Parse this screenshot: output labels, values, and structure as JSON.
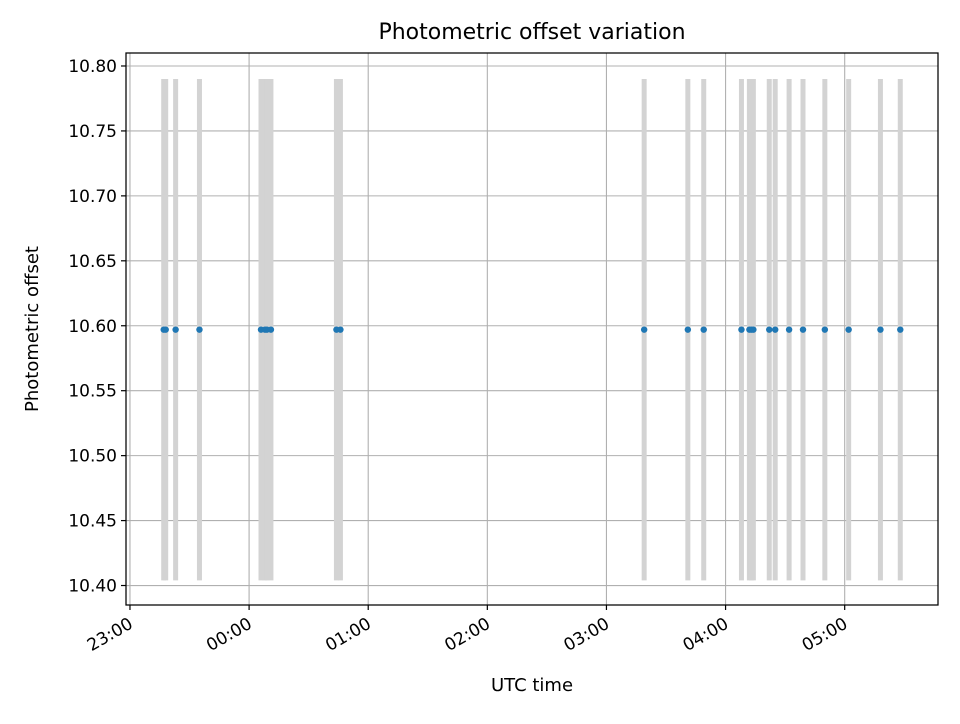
{
  "chart_data": {
    "type": "scatter",
    "title": "Photometric offset variation",
    "xlabel": "UTC time",
    "ylabel": "Photometric offset",
    "xlim": [
      "22:58",
      "05:47"
    ],
    "ylim": [
      10.385,
      10.81
    ],
    "x_ticks": [
      "23:00",
      "00:00",
      "01:00",
      "02:00",
      "03:00",
      "04:00",
      "05:00"
    ],
    "y_ticks": [
      10.4,
      10.45,
      10.5,
      10.55,
      10.6,
      10.65,
      10.7,
      10.75,
      10.8
    ],
    "y_tick_labels": [
      "10.40",
      "10.45",
      "10.50",
      "10.55",
      "10.60",
      "10.65",
      "10.70",
      "10.75",
      "10.80"
    ],
    "grid": true,
    "series": [
      {
        "x": [
          "23:17",
          "23:18",
          "23:23",
          "23:35",
          "00:06",
          "00:08",
          "00:09",
          "00:11",
          "00:44",
          "00:46",
          "03:19",
          "03:41",
          "03:49",
          "04:08",
          "04:12",
          "04:13",
          "04:14",
          "04:22",
          "04:25",
          "04:32",
          "04:39",
          "04:50",
          "05:02",
          "05:18",
          "05:28"
        ],
        "y": [
          10.597,
          10.597,
          10.597,
          10.597,
          10.597,
          10.597,
          10.597,
          10.597,
          10.597,
          10.597,
          10.597,
          10.597,
          10.597,
          10.597,
          10.597,
          10.597,
          10.597,
          10.597,
          10.597,
          10.597,
          10.597,
          10.597,
          10.597,
          10.597,
          10.597
        ]
      }
    ],
    "vertical_bands": {
      "y_range": [
        10.404,
        10.79
      ],
      "x": [
        "23:17",
        "23:18",
        "23:23",
        "23:35",
        "00:06",
        "00:08",
        "00:09",
        "00:11",
        "00:44",
        "00:46",
        "03:19",
        "03:41",
        "03:49",
        "04:08",
        "04:12",
        "04:13",
        "04:14",
        "04:22",
        "04:25",
        "04:32",
        "04:39",
        "04:50",
        "05:02",
        "05:18",
        "05:28"
      ]
    },
    "colors": {
      "points": "#1f77b4",
      "bands": "#d3d3d3",
      "grid": "#b0b0b0",
      "axes": "#000000"
    }
  }
}
